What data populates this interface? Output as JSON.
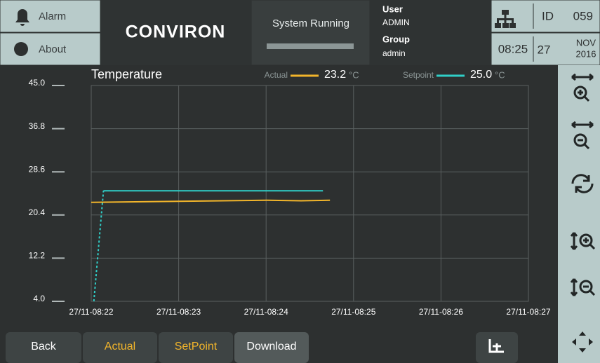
{
  "header": {
    "alarm": "Alarm",
    "about": "About",
    "logo": "CONVIRON",
    "status": "System Running",
    "user_label": "User",
    "user": "ADMIN",
    "group_label": "Group",
    "group": "admin",
    "id_label": "ID",
    "id": "059",
    "time": "08:25",
    "day": "27",
    "month": "NOV",
    "year": "2016"
  },
  "chart_data": {
    "type": "line",
    "title": "Temperature",
    "unit": "°C",
    "grid": true,
    "series": [
      {
        "name": "Actual",
        "color": "#f2b52b",
        "reading": "23.2",
        "x": [
          502,
          502.5,
          503,
          503.5,
          504,
          504.4,
          504.73
        ],
        "values": [
          22.8,
          22.9,
          23.0,
          23.1,
          23.2,
          23.1,
          23.2
        ]
      },
      {
        "name": "Setpoint",
        "color": "#30cfc8",
        "reading": "25.0",
        "x": [
          502.03,
          502.14,
          504.65
        ],
        "values": [
          4.0,
          25.0,
          25.0
        ]
      }
    ],
    "xlim": [
      502,
      507
    ],
    "xticks": [
      {
        "value": 502,
        "label": "27/11-08:22"
      },
      {
        "value": 503,
        "label": "27/11-08:23"
      },
      {
        "value": 504,
        "label": "27/11-08:24"
      },
      {
        "value": 505,
        "label": "27/11-08:25"
      },
      {
        "value": 506,
        "label": "27/11-08:26"
      },
      {
        "value": 507,
        "label": "27/11-08:27"
      }
    ],
    "ylim": [
      4,
      45
    ],
    "yticks": [
      {
        "value": 45,
        "label": "45.0"
      },
      36.8,
      28.6,
      20.4,
      12.2,
      {
        "value": 4,
        "label": "4.0"
      }
    ]
  },
  "footer": {
    "buttons": [
      "Back",
      "Actual",
      "SetPoint",
      "Download"
    ]
  }
}
